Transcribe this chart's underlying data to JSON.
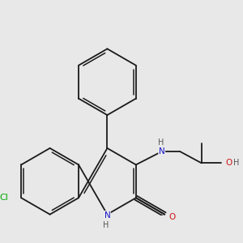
{
  "background_color": "#e8e8e8",
  "bond_color": "#1a1a1a",
  "colors": {
    "N": "#1414cc",
    "O": "#cc1414",
    "Cl": "#00aa00",
    "C": "#1a1a1a",
    "H": "#555555"
  },
  "figsize": [
    3.0,
    3.0
  ],
  "dpi": 100,
  "bond_lw": 1.3,
  "font_size": 7.5
}
